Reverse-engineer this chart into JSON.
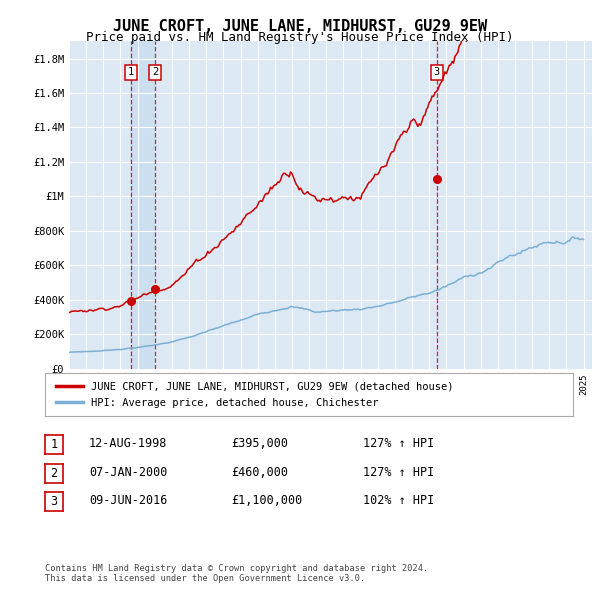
{
  "title": "JUNE CROFT, JUNE LANE, MIDHURST, GU29 9EW",
  "subtitle": "Price paid vs. HM Land Registry's House Price Index (HPI)",
  "ylim": [
    0,
    1900000
  ],
  "yticks": [
    0,
    200000,
    400000,
    600000,
    800000,
    1000000,
    1200000,
    1400000,
    1600000,
    1800000
  ],
  "ytick_labels": [
    "£0",
    "£200K",
    "£400K",
    "£600K",
    "£800K",
    "£1M",
    "£1.2M",
    "£1.4M",
    "£1.6M",
    "£1.8M"
  ],
  "sale_year_floats": [
    1998.62,
    2000.02,
    2016.44
  ],
  "sale_prices": [
    395000,
    460000,
    1100000
  ],
  "sale_labels": [
    "1",
    "2",
    "3"
  ],
  "line1_color": "#cc0000",
  "line2_color": "#7bafd4",
  "vline_color": "#cc0000",
  "dot_color": "#cc0000",
  "highlight_color": "#ccdff0",
  "legend_line1": "JUNE CROFT, JUNE LANE, MIDHURST, GU29 9EW (detached house)",
  "legend_line2": "HPI: Average price, detached house, Chichester",
  "table_entries": [
    {
      "label": "1",
      "date": "12-AUG-1998",
      "price": "£395,000",
      "hpi": "127% ↑ HPI"
    },
    {
      "label": "2",
      "date": "07-JAN-2000",
      "price": "£460,000",
      "hpi": "127% ↑ HPI"
    },
    {
      "label": "3",
      "date": "09-JUN-2016",
      "price": "£1,100,000",
      "hpi": "102% ↑ HPI"
    }
  ],
  "footnote": "Contains HM Land Registry data © Crown copyright and database right 2024.\nThis data is licensed under the Open Government Licence v3.0.",
  "background_color": "#ffffff",
  "plot_bg_color": "#dce9f5",
  "grid_color": "#ffffff"
}
